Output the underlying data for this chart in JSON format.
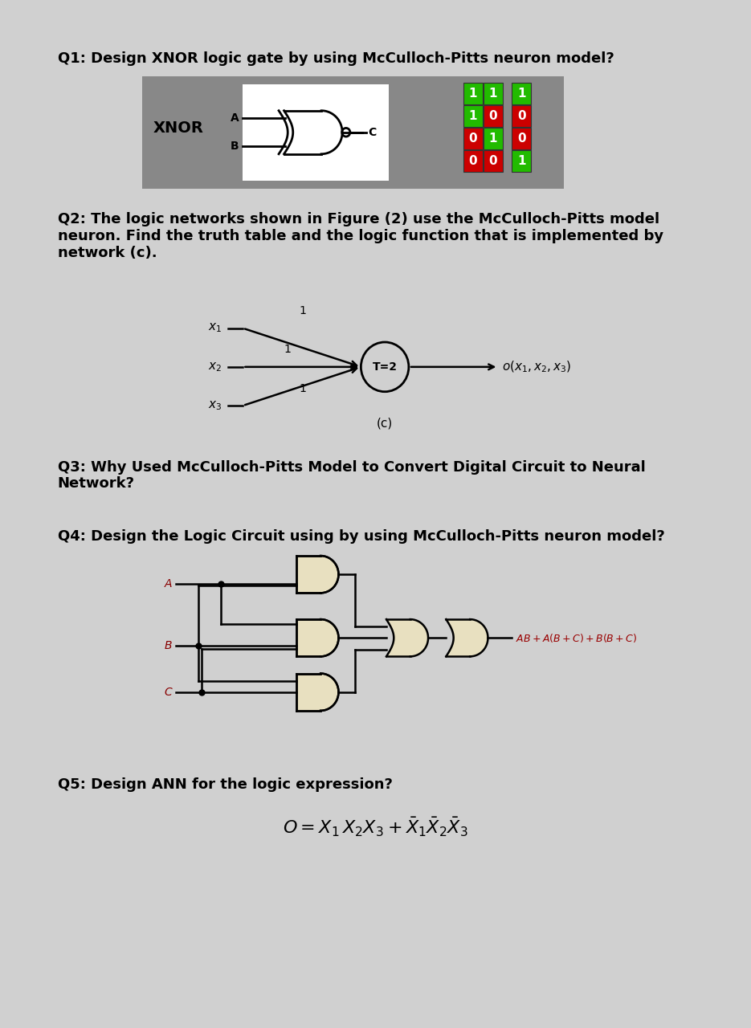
{
  "page_bg": "#d0d0d0",
  "content_bg": "#ffffff",
  "q1_title": "Q1: Design XNOR logic gate by using McCulloch-Pitts neuron model?",
  "q2_title": "Q2: The logic networks shown in Figure (2) use the McCulloch-Pitts model\nneuron. Find the truth table and the logic function that is implemented by\nnetwork (c).",
  "q3_title": "Q3: Why Used McCulloch-Pitts Model to Convert Digital Circuit to Neural\nNetwork?",
  "q4_title": "Q4: Design the Logic Circuit using by using McCulloch-Pitts neuron model?",
  "q5_title": "Q5: Design ANN for the logic expression?",
  "xnor_bg": "#888888",
  "truth_table_AB": [
    [
      "1",
      "1"
    ],
    [
      "1",
      "0"
    ],
    [
      "0",
      "1"
    ],
    [
      "0",
      "0"
    ]
  ],
  "truth_table_C": [
    "1",
    "0",
    "0",
    "1"
  ],
  "cell_colors_AB": [
    [
      "green",
      "green"
    ],
    [
      "green",
      "red"
    ],
    [
      "red",
      "green"
    ],
    [
      "red",
      "red"
    ]
  ],
  "cell_colors_C": [
    "green",
    "red",
    "red",
    "green"
  ],
  "color_green": "#22bb00",
  "color_red": "#cc0000"
}
